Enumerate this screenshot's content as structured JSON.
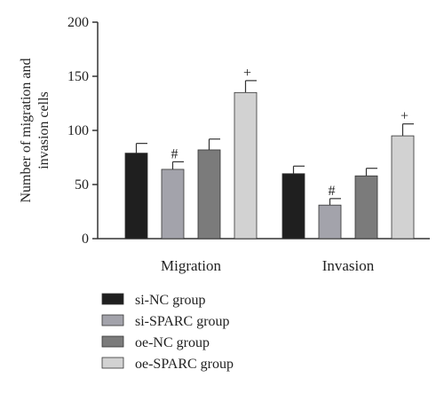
{
  "chart_data": {
    "type": "bar",
    "categories": [
      "Migration",
      "Invasion"
    ],
    "ylabel_lines": [
      "Number of migration and",
      "invasion cells"
    ],
    "ylim": [
      0,
      200
    ],
    "yticks": [
      0,
      50,
      100,
      150,
      200
    ],
    "grid": false,
    "legend_position": "bottom-left",
    "series": [
      {
        "name": "si-NC group",
        "color": "#1f1f1f",
        "values": [
          79,
          60
        ],
        "errors": [
          9,
          7
        ],
        "marks": [
          "",
          ""
        ]
      },
      {
        "name": "si-SPARC group",
        "color": "#a3a3ab",
        "values": [
          64,
          31
        ],
        "errors": [
          7,
          6
        ],
        "marks": [
          "#",
          "#"
        ]
      },
      {
        "name": "oe-NC group",
        "color": "#7b7b7b",
        "values": [
          82,
          58
        ],
        "errors": [
          10,
          7
        ],
        "marks": [
          "",
          ""
        ]
      },
      {
        "name": "oe-SPARC group",
        "color": "#d2d2d2",
        "values": [
          135,
          95
        ],
        "errors": [
          11,
          11
        ],
        "marks": [
          "+",
          "+"
        ]
      }
    ]
  }
}
